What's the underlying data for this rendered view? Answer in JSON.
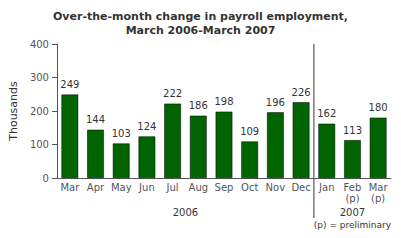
{
  "chart_data": {
    "type": "bar",
    "title": "Over-the-month change in payroll employment,\nMarch 2006-March 2007",
    "ylabel": "Thousands",
    "categories": [
      "Mar",
      "Apr",
      "May",
      "Jun",
      "Jul",
      "Aug",
      "Sep",
      "Oct",
      "Nov",
      "Dec",
      "Jan",
      "Feb\n(p)",
      "Mar\n(p)"
    ],
    "values": [
      249,
      144,
      103,
      124,
      222,
      186,
      198,
      109,
      196,
      226,
      162,
      113,
      180
    ],
    "color": "#006400",
    "ylim": [
      0,
      400
    ],
    "yticks": [
      0,
      100,
      200,
      300,
      400
    ],
    "grid": false,
    "data_labels": true,
    "annotations": [
      "2006",
      "2007",
      "(p) = preliminary"
    ]
  }
}
